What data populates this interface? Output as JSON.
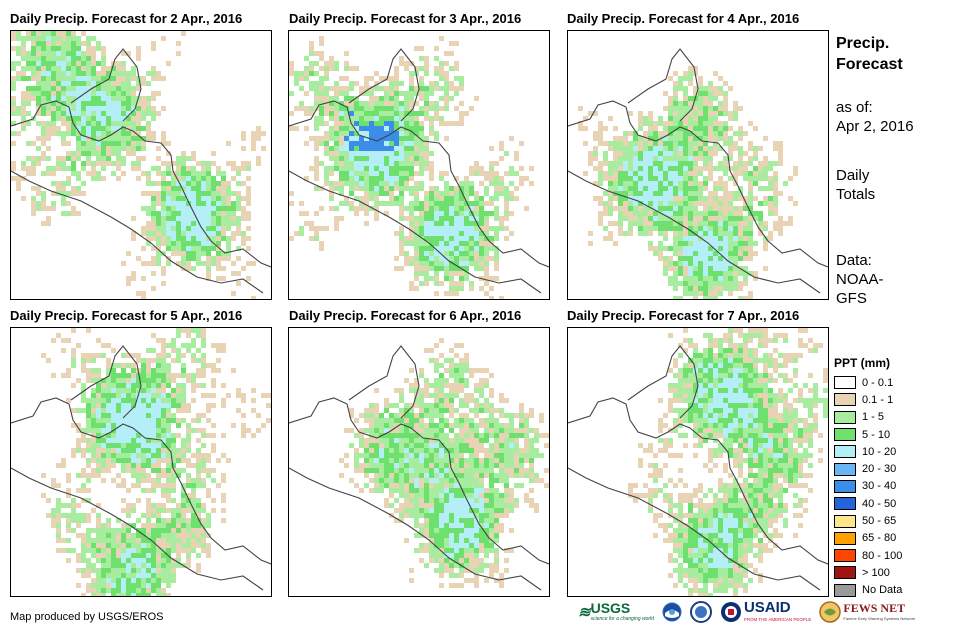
{
  "panels": [
    {
      "title": "Daily Precip. Forecast for 2 Apr., 2016"
    },
    {
      "title": "Daily Precip. Forecast for 3 Apr., 2016"
    },
    {
      "title": "Daily Precip. Forecast for 4 Apr., 2016"
    },
    {
      "title": "Daily Precip. Forecast for 5 Apr., 2016"
    },
    {
      "title": "Daily Precip. Forecast for 6 Apr., 2016"
    },
    {
      "title": "Daily Precip. Forecast for 7 Apr., 2016"
    }
  ],
  "sidebar": {
    "heading_line1": "Precip.",
    "heading_line2": "Forecast",
    "asof_label": "as of:",
    "asof_date": "Apr 2, 2016",
    "totals_line1": "Daily",
    "totals_line2": "Totals",
    "data_label": "Data:",
    "data_line1": "NOAA-",
    "data_line2": "GFS"
  },
  "legend": {
    "title": "PPT (mm)",
    "items": [
      {
        "label": "0 - 0.1",
        "color": "#ffffff"
      },
      {
        "label": "0.1 - 1",
        "color": "#e8d4b4"
      },
      {
        "label": "1 - 5",
        "color": "#a8eca0"
      },
      {
        "label": "5 - 10",
        "color": "#6ee06e"
      },
      {
        "label": "10 - 20",
        "color": "#b4eef6"
      },
      {
        "label": "20 - 30",
        "color": "#6ab4f4"
      },
      {
        "label": "30 - 40",
        "color": "#3c8cea"
      },
      {
        "label": "40 - 50",
        "color": "#2464d8"
      },
      {
        "label": "50 - 65",
        "color": "#ffe68c"
      },
      {
        "label": "65 - 80",
        "color": "#ffa000"
      },
      {
        "label": "80 - 100",
        "color": "#ff4600"
      },
      {
        "label": "> 100",
        "color": "#a01414"
      },
      {
        "label": "No Data",
        "color": "#9a9a9a"
      }
    ]
  },
  "footer": {
    "credit": "Map produced by USGS/EROS",
    "logos": [
      {
        "name": "usgs-logo",
        "text": "USGS",
        "tagline": "science for a changing world"
      },
      {
        "name": "noaa-logo",
        "text": "NOAA"
      },
      {
        "name": "usaid-logo",
        "text": "USAID",
        "tagline": "FROM THE AMERICAN PEOPLE"
      },
      {
        "name": "fewsnet-logo",
        "text": "FEWS NET",
        "tagline": "Famine Early Warning Systems Network"
      }
    ]
  }
}
